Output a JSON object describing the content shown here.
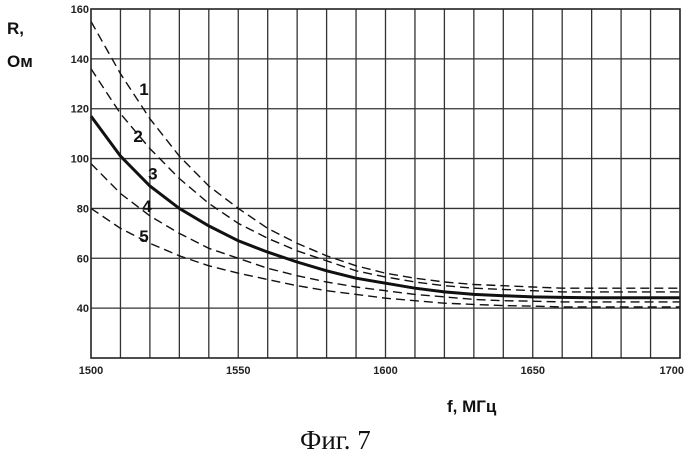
{
  "chart_data": {
    "type": "line",
    "xlabel": "f, МГц",
    "ylabel_line1": "R,",
    "ylabel_line2": "Ом",
    "caption": "Фиг. 7",
    "xlim": [
      1500,
      1700
    ],
    "ylim": [
      20,
      160
    ],
    "x_ticks": [
      1500,
      1550,
      1600,
      1650,
      1700
    ],
    "x_tick_labels": [
      "1500",
      "1550",
      "1600",
      "1650",
      "1700"
    ],
    "y_ticks": [
      40,
      60,
      80,
      100,
      120,
      140,
      160
    ],
    "y_tick_labels": [
      "40",
      "60",
      "80",
      "100",
      "120",
      "140",
      "160"
    ],
    "grid": true,
    "x_grid_step": 10,
    "y_grid_step": 20,
    "x": [
      1500,
      1510,
      1520,
      1530,
      1540,
      1550,
      1560,
      1570,
      1580,
      1590,
      1600,
      1610,
      1620,
      1630,
      1640,
      1650,
      1660,
      1670,
      1680,
      1690,
      1700
    ],
    "series": [
      {
        "name": "1",
        "style": "dashed",
        "values": [
          155,
          134,
          116,
          101,
          89,
          80,
          72,
          66,
          61,
          57,
          54,
          52,
          50.5,
          49.5,
          49,
          48.5,
          48,
          48,
          48,
          48,
          48
        ]
      },
      {
        "name": "2",
        "style": "dashed",
        "values": [
          136,
          118,
          104,
          92,
          82,
          74,
          68,
          63,
          59,
          55,
          52.5,
          50.5,
          49,
          48,
          47.5,
          47,
          46.5,
          46.5,
          46.5,
          46.5,
          46.5
        ]
      },
      {
        "name": "3",
        "style": "solid",
        "values": [
          117,
          101,
          89,
          80,
          73,
          67,
          62.5,
          58.5,
          55,
          52,
          50,
          48,
          46.5,
          45.5,
          45,
          44.5,
          44.3,
          44.2,
          44.2,
          44.2,
          44.2
        ]
      },
      {
        "name": "4",
        "style": "dashed",
        "values": [
          98,
          86,
          77,
          70,
          64,
          60,
          56,
          53,
          50.5,
          48.5,
          47,
          45.5,
          44.5,
          43.5,
          43,
          42.8,
          42.5,
          42.5,
          42.5,
          42.5,
          42.5
        ]
      },
      {
        "name": "5",
        "style": "dashed",
        "values": [
          80,
          72,
          66,
          61,
          57,
          54,
          51.5,
          49,
          47,
          45.5,
          44,
          43,
          42,
          41.5,
          41,
          40.8,
          40.5,
          40.5,
          40.5,
          40.5,
          40.5
        ]
      }
    ],
    "label_values": [
      {
        "text": "1",
        "x": 1518,
        "y": 128
      },
      {
        "text": "2",
        "x": 1516,
        "y": 109
      },
      {
        "text": "3",
        "x": 1521,
        "y": 94
      },
      {
        "text": "4",
        "x": 1519,
        "y": 81
      },
      {
        "text": "5",
        "x": 1518,
        "y": 69
      }
    ]
  }
}
